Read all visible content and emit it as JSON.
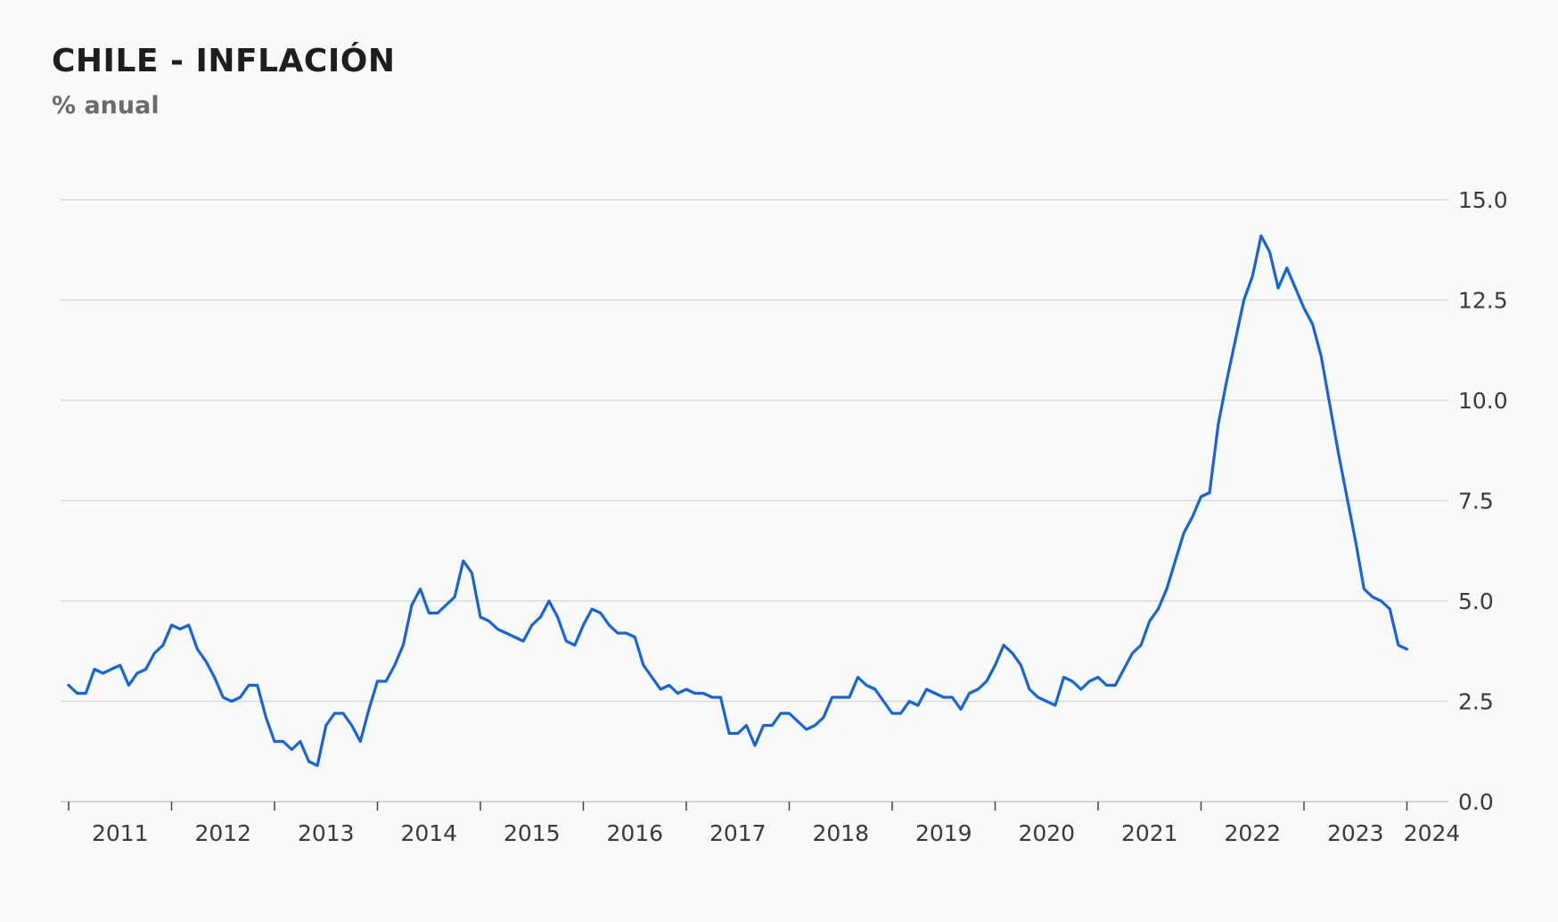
{
  "chart_data": {
    "type": "line",
    "title": "CHILE - INFLACIÓN",
    "subtitle": "% anual",
    "xlabel": "",
    "ylabel": "",
    "ylim": [
      0,
      15
    ],
    "y_ticks": [
      "0.0",
      "2.5",
      "5.0",
      "7.5",
      "10.0",
      "12.5",
      "15.0"
    ],
    "y_axis_side": "right",
    "grid": true,
    "x_ticks": [
      "2011",
      "2012",
      "2013",
      "2014",
      "2015",
      "2016",
      "2017",
      "2018",
      "2019",
      "2020",
      "2021",
      "2022",
      "2023",
      "2024"
    ],
    "x_start": "2011-01",
    "series": [
      {
        "color": "#1565d8",
        "values": [
          2.9,
          2.7,
          2.7,
          3.3,
          3.2,
          3.3,
          3.4,
          2.9,
          3.2,
          3.3,
          3.7,
          3.9,
          4.4,
          4.3,
          4.4,
          3.8,
          3.5,
          3.1,
          2.6,
          2.5,
          2.6,
          2.9,
          2.9,
          2.1,
          1.5,
          1.5,
          1.3,
          1.5,
          1.0,
          0.9,
          1.9,
          2.2,
          2.2,
          1.9,
          1.5,
          2.3,
          3.0,
          3.0,
          3.4,
          3.9,
          4.9,
          5.3,
          4.7,
          4.7,
          4.9,
          5.1,
          6.0,
          5.7,
          4.6,
          4.5,
          4.3,
          4.2,
          4.1,
          4.0,
          4.4,
          4.6,
          5.0,
          4.6,
          4.0,
          3.9,
          4.4,
          4.8,
          4.7,
          4.4,
          4.2,
          4.2,
          4.1,
          3.4,
          3.1,
          2.8,
          2.9,
          2.7,
          2.8,
          2.7,
          2.7,
          2.6,
          2.6,
          1.7,
          1.7,
          1.9,
          1.4,
          1.9,
          1.9,
          2.2,
          2.2,
          2.0,
          1.8,
          1.9,
          2.1,
          2.6,
          2.6,
          2.6,
          3.1,
          2.9,
          2.8,
          2.5,
          2.2,
          2.2,
          2.5,
          2.4,
          2.8,
          2.7,
          2.6,
          2.6,
          2.3,
          2.7,
          2.8,
          3.0,
          3.4,
          3.9,
          3.7,
          3.4,
          2.8,
          2.6,
          2.5,
          2.4,
          3.1,
          3.0,
          2.8,
          3.0,
          3.1,
          2.9,
          2.9,
          3.3,
          3.7,
          3.9,
          4.5,
          4.8,
          5.3,
          6.0,
          6.7,
          7.1,
          7.6,
          7.7,
          9.4,
          10.5,
          11.5,
          12.5,
          13.1,
          14.1,
          13.7,
          12.8,
          13.3,
          12.8,
          12.3,
          11.9,
          11.1,
          9.9,
          8.7,
          7.6,
          6.5,
          5.3,
          5.1,
          5.0,
          4.8,
          3.9,
          3.8
        ]
      }
    ]
  }
}
